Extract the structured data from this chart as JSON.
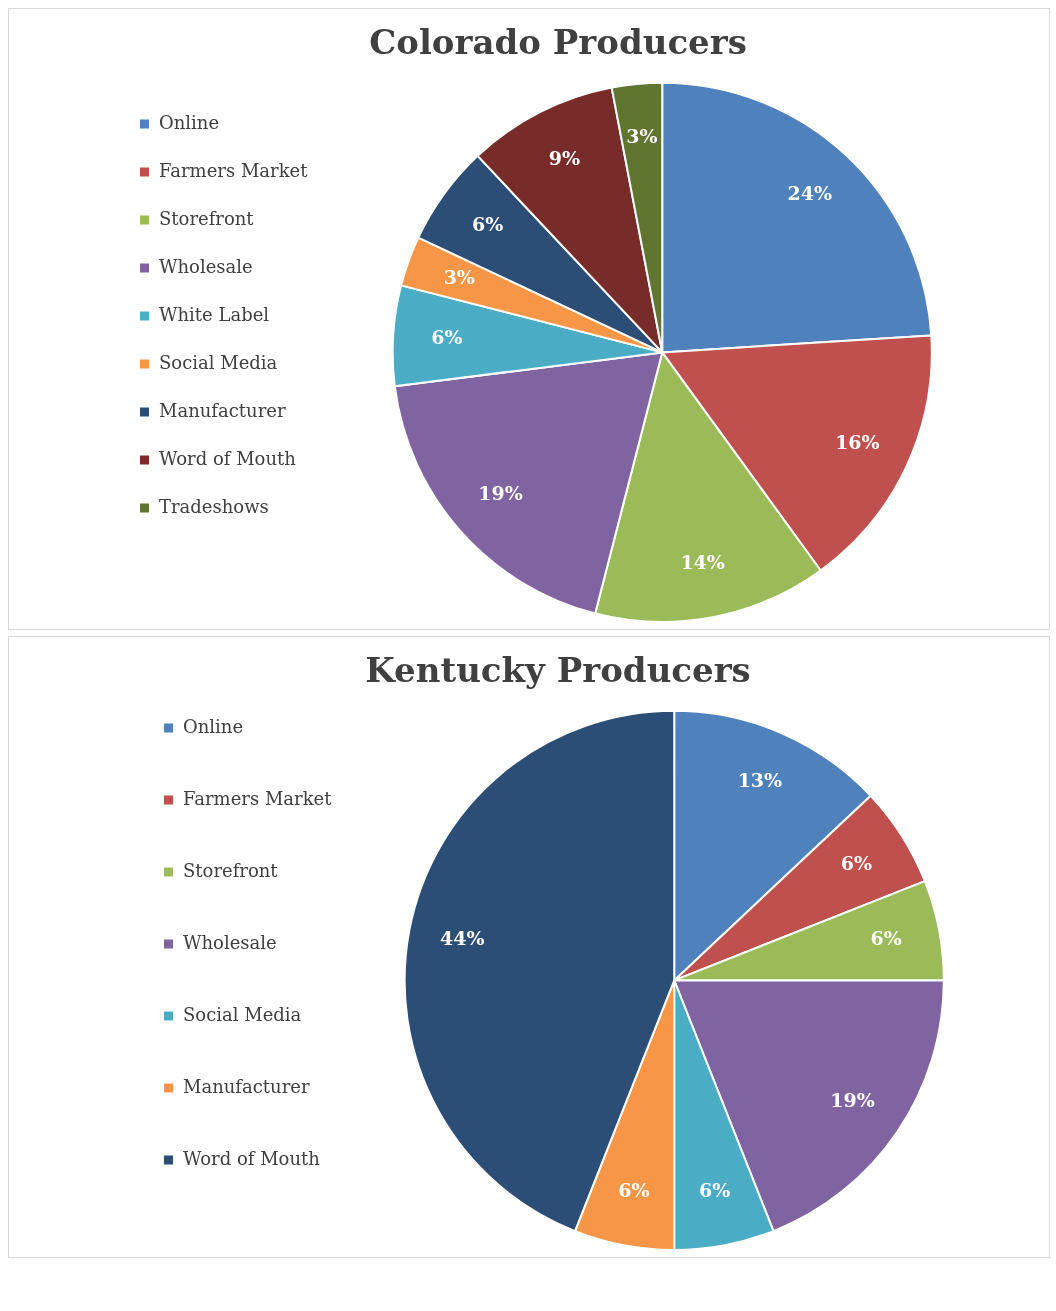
{
  "chart_data": [
    {
      "type": "pie",
      "title": "Colorado Producers",
      "categories": [
        "Online",
        "Farmers Market",
        "Storefront",
        "Wholesale",
        "White Label",
        "Social Media",
        "Manufacturer",
        "Word of Mouth",
        "Tradeshows"
      ],
      "values": [
        24,
        16,
        14,
        19,
        6,
        3,
        6,
        9,
        3
      ],
      "colors": [
        "#4f81bd",
        "#c0504d",
        "#9bbb59",
        "#8064a2",
        "#4bacc6",
        "#f79646",
        "#2c4d75",
        "#772c2a",
        "#5f7530"
      ],
      "value_labels": [
        "24%",
        "16%",
        "14%",
        "19%",
        "6%",
        "3%",
        "6%",
        "9%",
        "3%"
      ],
      "legend": "left"
    },
    {
      "type": "pie",
      "title": "Kentucky Producers",
      "categories": [
        "Online",
        "Farmers Market",
        "Storefront",
        "Wholesale",
        "Social Media",
        "Manufacturer",
        "Word of Mouth"
      ],
      "values": [
        13,
        6,
        6,
        19,
        6,
        6,
        44
      ],
      "colors": [
        "#4f81bd",
        "#c0504d",
        "#9bbb59",
        "#8064a2",
        "#4bacc6",
        "#f79646",
        "#2c4d75"
      ],
      "value_labels": [
        "13%",
        "6%",
        "6%",
        "19%",
        "6%",
        "6%",
        "44%"
      ],
      "legend": "left"
    }
  ]
}
